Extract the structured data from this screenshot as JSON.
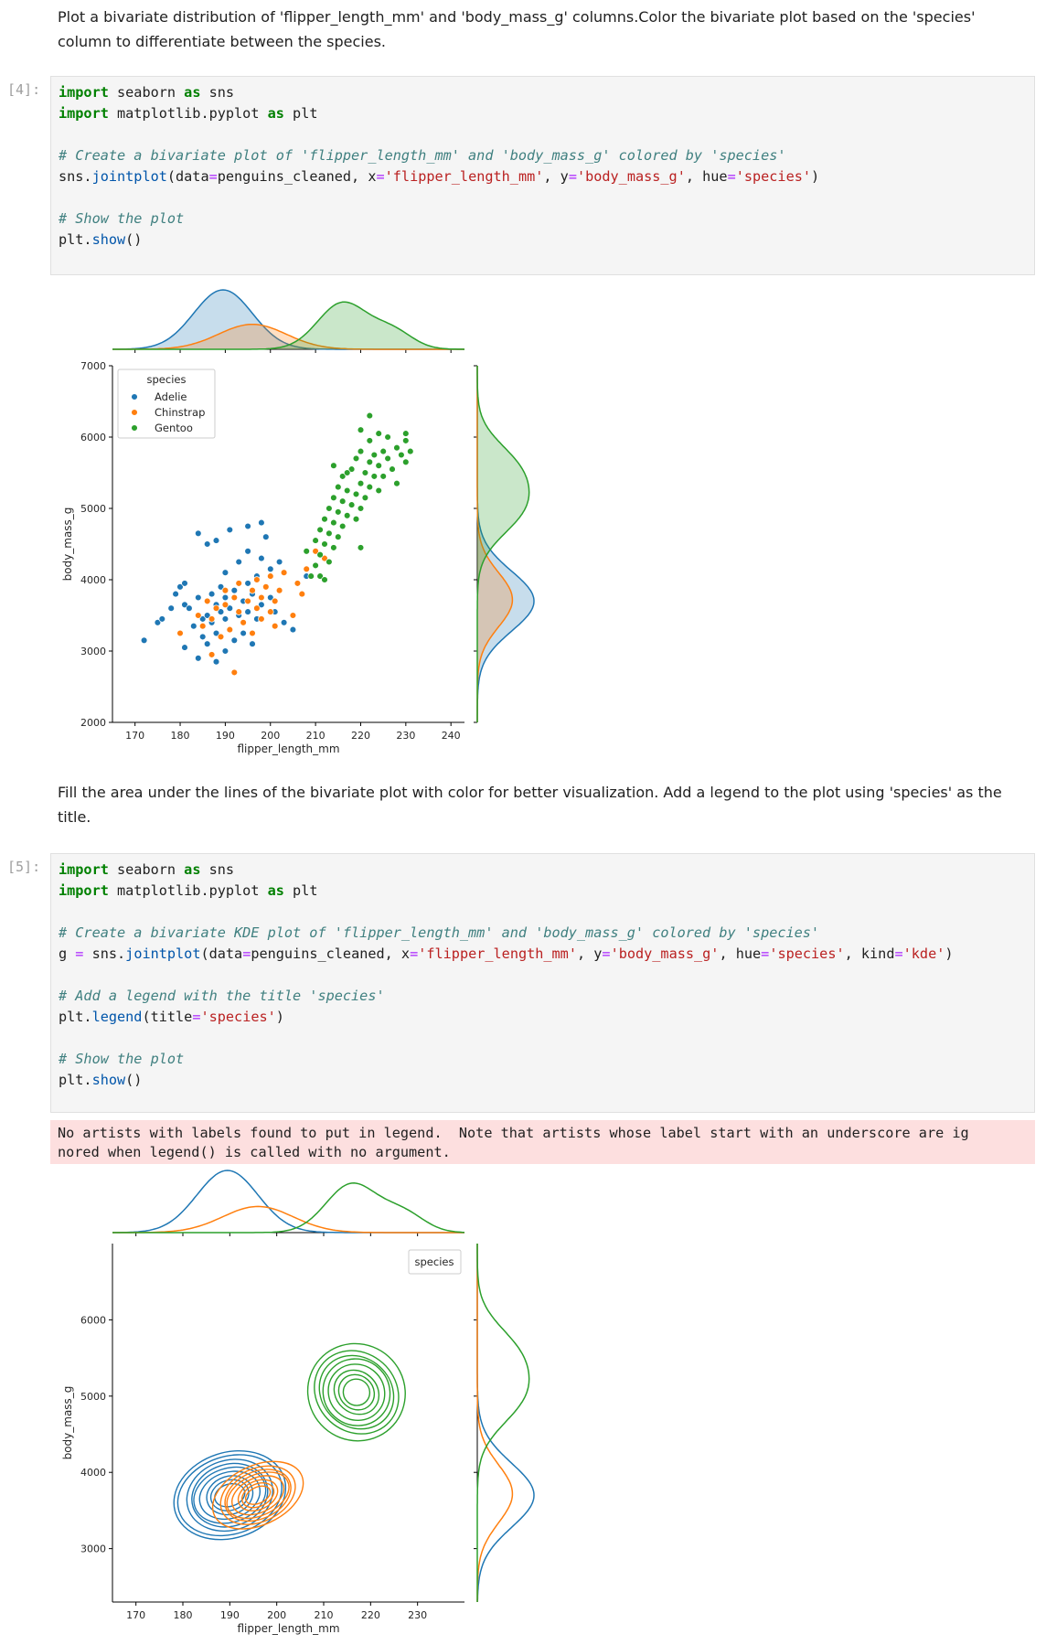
{
  "cells": {
    "md1": {
      "line1": "Plot a bivariate distribution of 'flipper_length_mm' and 'body_mass_g' columns.Color the bivariate plot based on the 'species'",
      "line2": "column to differentiate between the species."
    },
    "code1": {
      "prompt": "[4]:",
      "lines": [
        "import seaborn as sns",
        "import matplotlib.pyplot as plt",
        "",
        "# Create a bivariate plot of 'flipper_length_mm' and 'body_mass_g' colored by 'species'",
        "sns.jointplot(data=penguins_cleaned, x='flipper_length_mm', y='body_mass_g', hue='species')",
        "",
        "# Show the plot",
        "plt.show()"
      ]
    },
    "md2": {
      "line1": "Fill the area under the lines of the bivariate plot with color for better visualization. Add a legend to the plot using 'species' as the",
      "line2": "title."
    },
    "code2": {
      "prompt": "[5]:",
      "lines": [
        "import seaborn as sns",
        "import matplotlib.pyplot as plt",
        "",
        "# Create a bivariate KDE plot of 'flipper_length_mm' and 'body_mass_g' colored by 'species'",
        "g = sns.jointplot(data=penguins_cleaned, x='flipper_length_mm', y='body_mass_g', hue='species', kind='kde')",
        "",
        "# Add a legend with the title 'species'",
        "plt.legend(title='species')",
        "",
        "# Show the plot",
        "plt.show()"
      ]
    },
    "stderr": {
      "line1": "No artists with labels found to put in legend.  Note that artists whose label start with an underscore are ig",
      "line2": "nored when legend() is called with no argument."
    }
  },
  "colors": {
    "Adelie": "#1f77b4",
    "Chinstrap": "#ff7f0e",
    "Gentoo": "#2ca02c"
  },
  "chart_data": [
    {
      "type": "scatter",
      "xlabel": "flipper_length_mm",
      "ylabel": "body_mass_g",
      "xlim": [
        165,
        243
      ],
      "ylim": [
        2000,
        7000
      ],
      "xticks": [
        170,
        180,
        190,
        200,
        210,
        220,
        230,
        240
      ],
      "yticks": [
        2000,
        3000,
        4000,
        5000,
        6000,
        7000
      ],
      "legend": {
        "title": "species",
        "placement": "top-left",
        "entries": [
          "Adelie",
          "Chinstrap",
          "Gentoo"
        ]
      },
      "marginals": "kde (filled)",
      "series": [
        {
          "name": "Adelie",
          "points": [
            [
              172,
              3150
            ],
            [
              175,
              3400
            ],
            [
              176,
              3450
            ],
            [
              178,
              3600
            ],
            [
              179,
              3800
            ],
            [
              180,
              3900
            ],
            [
              181,
              3650
            ],
            [
              181,
              3950
            ],
            [
              181,
              3050
            ],
            [
              182,
              3600
            ],
            [
              183,
              3350
            ],
            [
              184,
              3750
            ],
            [
              184,
              2900
            ],
            [
              185,
              3200
            ],
            [
              185,
              3450
            ],
            [
              186,
              3500
            ],
            [
              186,
              3700
            ],
            [
              186,
              3100
            ],
            [
              187,
              3400
            ],
            [
              187,
              3800
            ],
            [
              188,
              3250
            ],
            [
              188,
              3650
            ],
            [
              188,
              2850
            ],
            [
              189,
              3550
            ],
            [
              189,
              3900
            ],
            [
              190,
              3000
            ],
            [
              190,
              3450
            ],
            [
              190,
              3750
            ],
            [
              190,
              4100
            ],
            [
              191,
              3300
            ],
            [
              191,
              3600
            ],
            [
              192,
              3850
            ],
            [
              192,
              3150
            ],
            [
              193,
              3500
            ],
            [
              193,
              4250
            ],
            [
              194,
              3700
            ],
            [
              194,
              3250
            ],
            [
              195,
              3950
            ],
            [
              195,
              3550
            ],
            [
              195,
              4400
            ],
            [
              196,
              3800
            ],
            [
              196,
              3100
            ],
            [
              197,
              3450
            ],
            [
              197,
              4050
            ],
            [
              198,
              3650
            ],
            [
              198,
              4300
            ],
            [
              199,
              3900
            ],
            [
              199,
              4600
            ],
            [
              200,
              3750
            ],
            [
              200,
              4150
            ],
            [
              201,
              3550
            ],
            [
              202,
              4250
            ],
            [
              203,
              3400
            ],
            [
              205,
              3300
            ],
            [
              208,
              4050
            ],
            [
              210,
              4200
            ],
            [
              184,
              4650
            ],
            [
              186,
              4500
            ],
            [
              188,
              4550
            ],
            [
              191,
              4700
            ],
            [
              195,
              4750
            ],
            [
              198,
              4800
            ]
          ]
        },
        {
          "name": "Chinstrap",
          "points": [
            [
              180,
              3250
            ],
            [
              184,
              3500
            ],
            [
              185,
              3350
            ],
            [
              186,
              3700
            ],
            [
              187,
              2950
            ],
            [
              187,
              3450
            ],
            [
              188,
              3600
            ],
            [
              189,
              3200
            ],
            [
              190,
              3650
            ],
            [
              190,
              3850
            ],
            [
              191,
              3300
            ],
            [
              192,
              3750
            ],
            [
              192,
              2700
            ],
            [
              193,
              3550
            ],
            [
              193,
              3950
            ],
            [
              194,
              3400
            ],
            [
              195,
              3700
            ],
            [
              196,
              3250
            ],
            [
              196,
              3850
            ],
            [
              197,
              3600
            ],
            [
              197,
              4000
            ],
            [
              198,
              3450
            ],
            [
              198,
              3750
            ],
            [
              199,
              3900
            ],
            [
              200,
              3550
            ],
            [
              200,
              4050
            ],
            [
              201,
              3700
            ],
            [
              201,
              3350
            ],
            [
              202,
              3850
            ],
            [
              203,
              4100
            ],
            [
              205,
              3500
            ],
            [
              206,
              3950
            ],
            [
              207,
              3800
            ],
            [
              208,
              4150
            ],
            [
              210,
              4400
            ],
            [
              212,
              4000
            ],
            [
              212,
              4300
            ]
          ]
        },
        {
          "name": "Gentoo",
          "points": [
            [
              208,
              4400
            ],
            [
              209,
              4050
            ],
            [
              210,
              4550
            ],
            [
              210,
              4200
            ],
            [
              211,
              4700
            ],
            [
              211,
              4350
            ],
            [
              211,
              4050
            ],
            [
              212,
              4850
            ],
            [
              212,
              4500
            ],
            [
              213,
              4650
            ],
            [
              213,
              4250
            ],
            [
              213,
              5000
            ],
            [
              214,
              4800
            ],
            [
              214,
              4450
            ],
            [
              214,
              5150
            ],
            [
              215,
              4950
            ],
            [
              215,
              4600
            ],
            [
              215,
              5300
            ],
            [
              216,
              4750
            ],
            [
              216,
              5100
            ],
            [
              216,
              5450
            ],
            [
              217,
              4900
            ],
            [
              217,
              5250
            ],
            [
              218,
              5050
            ],
            [
              218,
              5550
            ],
            [
              219,
              5200
            ],
            [
              219,
              4850
            ],
            [
              219,
              5700
            ],
            [
              220,
              5350
            ],
            [
              220,
              5000
            ],
            [
              220,
              5800
            ],
            [
              221,
              5500
            ],
            [
              221,
              5150
            ],
            [
              222,
              5650
            ],
            [
              222,
              5300
            ],
            [
              222,
              5950
            ],
            [
              223,
              5450
            ],
            [
              223,
              5750
            ],
            [
              224,
              5600
            ],
            [
              224,
              5250
            ],
            [
              225,
              5800
            ],
            [
              225,
              5450
            ],
            [
              226,
              5700
            ],
            [
              226,
              6000
            ],
            [
              227,
              5550
            ],
            [
              228,
              5850
            ],
            [
              228,
              5350
            ],
            [
              229,
              5750
            ],
            [
              230,
              5950
            ],
            [
              230,
              5650
            ],
            [
              230,
              6050
            ],
            [
              231,
              5800
            ],
            [
              222,
              6300
            ],
            [
              224,
              6050
            ],
            [
              220,
              6100
            ],
            [
              217,
              5500
            ],
            [
              214,
              5600
            ],
            [
              212,
              4000
            ],
            [
              220,
              4450
            ]
          ]
        }
      ]
    },
    {
      "type": "kde",
      "xlabel": "flipper_length_mm",
      "ylabel": "body_mass_g",
      "xlim": [
        165,
        240
      ],
      "ylim": [
        2300,
        7000
      ],
      "xticks": [
        170,
        180,
        190,
        200,
        210,
        220,
        230
      ],
      "yticks": [
        3000,
        4000,
        5000,
        6000
      ],
      "legend": {
        "title": "species",
        "placement": "top-right",
        "entries": []
      },
      "marginals": "kde (lines)",
      "series": [
        {
          "name": "Adelie",
          "center": [
            190,
            3700
          ]
        },
        {
          "name": "Chinstrap",
          "center": [
            196,
            3700
          ]
        },
        {
          "name": "Gentoo",
          "center": [
            217,
            5050
          ]
        }
      ]
    }
  ]
}
